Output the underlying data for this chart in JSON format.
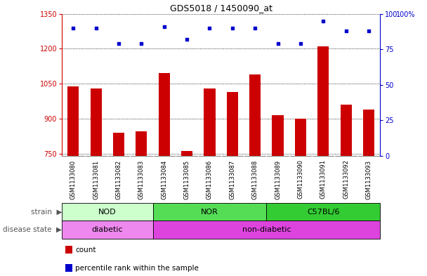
{
  "title": "GDS5018 / 1450090_at",
  "samples": [
    "GSM1133080",
    "GSM1133081",
    "GSM1133082",
    "GSM1133083",
    "GSM1133084",
    "GSM1133085",
    "GSM1133086",
    "GSM1133087",
    "GSM1133088",
    "GSM1133089",
    "GSM1133090",
    "GSM1133091",
    "GSM1133092",
    "GSM1133093"
  ],
  "counts": [
    1040,
    1030,
    840,
    845,
    1095,
    760,
    1030,
    1015,
    1090,
    915,
    900,
    1210,
    960,
    940
  ],
  "percentiles": [
    90,
    90,
    79,
    79,
    91,
    82,
    90,
    90,
    90,
    79,
    79,
    95,
    88,
    88
  ],
  "ylim_left": [
    740,
    1350
  ],
  "ylim_right": [
    0,
    100
  ],
  "yticks_left": [
    750,
    900,
    1050,
    1200,
    1350
  ],
  "yticks_right": [
    0,
    25,
    50,
    75,
    100
  ],
  "bar_color": "#cc0000",
  "dot_color": "#0000cc",
  "strain_groups": [
    {
      "label": "NOD",
      "start": 0,
      "end": 3,
      "color": "#ccffcc"
    },
    {
      "label": "NOR",
      "start": 4,
      "end": 8,
      "color": "#55dd55"
    },
    {
      "label": "C57BL/6",
      "start": 9,
      "end": 13,
      "color": "#33cc33"
    }
  ],
  "disease_groups": [
    {
      "label": "diabetic",
      "start": 0,
      "end": 3,
      "color": "#ee88ee"
    },
    {
      "label": "non-diabetic",
      "start": 4,
      "end": 13,
      "color": "#dd44dd"
    }
  ],
  "background_color": "#ffffff",
  "xtick_bg_color": "#cccccc",
  "grid_linestyle": "dotted",
  "bar_width": 0.5,
  "dot_size": 12,
  "legend_items": [
    {
      "label": "count",
      "color": "#cc0000"
    },
    {
      "label": "percentile rank within the sample",
      "color": "#0000cc"
    }
  ]
}
